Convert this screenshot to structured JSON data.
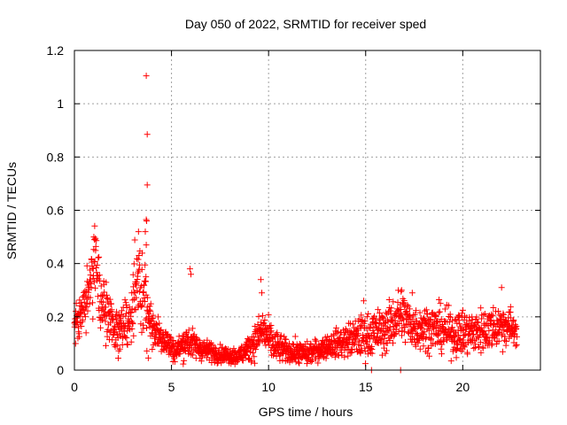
{
  "chart_data": {
    "type": "scatter",
    "title": "Day 050 of 2022, SRMTID for receiver sped",
    "xlabel": "GPS time / hours",
    "ylabel": "SRMTID / TECUs",
    "xlim": [
      0,
      24
    ],
    "ylim": [
      0,
      1.2
    ],
    "xticks": [
      0,
      5,
      10,
      15,
      20
    ],
    "xtick_labels": [
      "0",
      "5",
      "10",
      "15",
      "20"
    ],
    "yticks": [
      0,
      0.2,
      0.4,
      0.6,
      0.8,
      1.0,
      1.2
    ],
    "ytick_labels": [
      "0",
      "0.2",
      "0.4",
      "0.6",
      "0.8",
      "1",
      "1.2"
    ],
    "grid": true,
    "marker": "+",
    "series_color": "#ff0000",
    "envelope": [
      {
        "t": 0.0,
        "y": 0.16,
        "s": 0.04
      },
      {
        "t": 0.4,
        "y": 0.22,
        "s": 0.05
      },
      {
        "t": 0.8,
        "y": 0.34,
        "s": 0.06
      },
      {
        "t": 1.1,
        "y": 0.4,
        "s": 0.07
      },
      {
        "t": 1.4,
        "y": 0.25,
        "s": 0.06
      },
      {
        "t": 1.8,
        "y": 0.19,
        "s": 0.05
      },
      {
        "t": 2.3,
        "y": 0.16,
        "s": 0.05
      },
      {
        "t": 2.8,
        "y": 0.17,
        "s": 0.05
      },
      {
        "t": 3.2,
        "y": 0.3,
        "s": 0.08
      },
      {
        "t": 3.6,
        "y": 0.28,
        "s": 0.08
      },
      {
        "t": 4.0,
        "y": 0.16,
        "s": 0.04
      },
      {
        "t": 4.6,
        "y": 0.12,
        "s": 0.03
      },
      {
        "t": 5.2,
        "y": 0.07,
        "s": 0.02
      },
      {
        "t": 5.8,
        "y": 0.11,
        "s": 0.03
      },
      {
        "t": 6.5,
        "y": 0.08,
        "s": 0.02
      },
      {
        "t": 7.5,
        "y": 0.06,
        "s": 0.015
      },
      {
        "t": 8.5,
        "y": 0.05,
        "s": 0.015
      },
      {
        "t": 9.2,
        "y": 0.1,
        "s": 0.03
      },
      {
        "t": 9.7,
        "y": 0.15,
        "s": 0.04
      },
      {
        "t": 10.3,
        "y": 0.09,
        "s": 0.03
      },
      {
        "t": 11.0,
        "y": 0.07,
        "s": 0.02
      },
      {
        "t": 12.0,
        "y": 0.06,
        "s": 0.02
      },
      {
        "t": 13.0,
        "y": 0.09,
        "s": 0.02
      },
      {
        "t": 14.0,
        "y": 0.11,
        "s": 0.03
      },
      {
        "t": 15.0,
        "y": 0.13,
        "s": 0.04
      },
      {
        "t": 16.0,
        "y": 0.15,
        "s": 0.04
      },
      {
        "t": 16.8,
        "y": 0.21,
        "s": 0.05
      },
      {
        "t": 17.5,
        "y": 0.16,
        "s": 0.04
      },
      {
        "t": 18.5,
        "y": 0.16,
        "s": 0.04
      },
      {
        "t": 19.5,
        "y": 0.14,
        "s": 0.04
      },
      {
        "t": 20.5,
        "y": 0.14,
        "s": 0.04
      },
      {
        "t": 21.5,
        "y": 0.16,
        "s": 0.04
      },
      {
        "t": 22.2,
        "y": 0.17,
        "s": 0.04
      },
      {
        "t": 22.8,
        "y": 0.15,
        "s": 0.03
      }
    ],
    "outliers": [
      {
        "x": 3.7,
        "y": 1.105
      },
      {
        "x": 3.75,
        "y": 0.885
      },
      {
        "x": 3.75,
        "y": 0.695
      },
      {
        "x": 3.7,
        "y": 0.565
      },
      {
        "x": 3.72,
        "y": 0.56
      },
      {
        "x": 3.65,
        "y": 0.52
      },
      {
        "x": 3.7,
        "y": 0.47
      },
      {
        "x": 3.3,
        "y": 0.52
      },
      {
        "x": 1.0,
        "y": 0.5
      },
      {
        "x": 1.05,
        "y": 0.49
      },
      {
        "x": 5.95,
        "y": 0.38
      },
      {
        "x": 6.0,
        "y": 0.36
      },
      {
        "x": 9.6,
        "y": 0.34
      },
      {
        "x": 9.65,
        "y": 0.29
      },
      {
        "x": 22.0,
        "y": 0.31
      },
      {
        "x": 16.85,
        "y": 0.3
      },
      {
        "x": 17.4,
        "y": 0.29
      },
      {
        "x": 15.3,
        "y": 0.0
      },
      {
        "x": 16.8,
        "y": 0.0
      },
      {
        "x": 14.9,
        "y": 0.26
      }
    ]
  }
}
